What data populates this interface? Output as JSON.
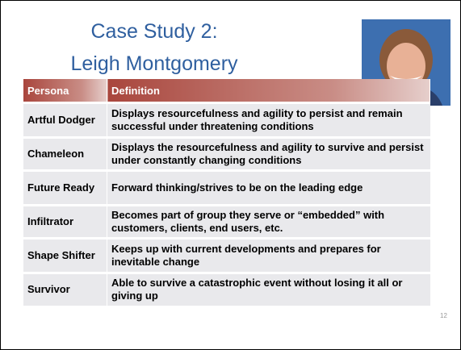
{
  "title": {
    "line1": "Case Study 2:",
    "line2": "Leigh Montgomery"
  },
  "table": {
    "columns": [
      "Persona",
      "Definition"
    ],
    "rows": [
      [
        "Artful Dodger",
        "Displays resourcefulness and agility to persist and remain successful under threatening conditions"
      ],
      [
        "Chameleon",
        "Displays the resourcefulness and agility to survive and persist under constantly changing conditions"
      ],
      [
        "Future Ready",
        "Forward thinking/strives to be on the leading edge"
      ],
      [
        "Infiltrator",
        "Becomes part of group they serve or “embedded” with customers, clients, end users, etc."
      ],
      [
        "Shape Shifter",
        "Keeps up with current developments and prepares for inevitable change"
      ],
      [
        "Survivor",
        "Able to survive a catastrophic event without losing it all or giving up"
      ]
    ]
  },
  "page_number": "12"
}
